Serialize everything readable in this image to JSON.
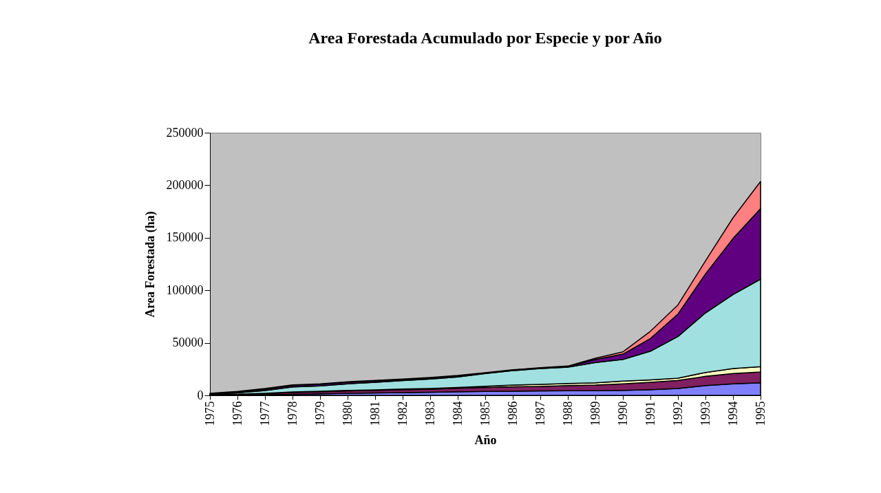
{
  "chart_data": {
    "type": "area",
    "title": "Area Forestada Acumulado por Especie y por Año",
    "xlabel": "Año",
    "ylabel": "Area Forestada (ha)",
    "stacked": true,
    "grid": false,
    "legend": false,
    "categories": [
      "1975",
      "1976",
      "1977",
      "1978",
      "1979",
      "1980",
      "1981",
      "1982",
      "1983",
      "1984",
      "1985",
      "1986",
      "1987",
      "1988",
      "1989",
      "1990",
      "1991",
      "1992",
      "1993",
      "1994",
      "1995"
    ],
    "ylim": [
      0,
      250000
    ],
    "yticks": [
      0,
      50000,
      100000,
      150000,
      200000,
      250000
    ],
    "series": [
      {
        "color": "#8080ff",
        "values": [
          0,
          300,
          600,
          1000,
          1500,
          2000,
          2300,
          2600,
          3000,
          3500,
          3800,
          3900,
          4200,
          4400,
          4400,
          4800,
          5400,
          6500,
          9400,
          10900,
          12000
        ]
      },
      {
        "color": "#802060",
        "values": [
          500,
          600,
          1000,
          1800,
          2000,
          2200,
          2500,
          2800,
          2900,
          3300,
          3800,
          4200,
          4300,
          5000,
          5400,
          6100,
          7000,
          7700,
          8700,
          9800,
          10200
        ]
      },
      {
        "color": "#ffffc0",
        "values": [
          200,
          300,
          400,
          500,
          500,
          500,
          500,
          600,
          600,
          700,
          1100,
          1700,
          2000,
          1900,
          2200,
          2600,
          2400,
          2200,
          3700,
          4800,
          5100
        ]
      },
      {
        "color": "#a0e0e0",
        "values": [
          500,
          1300,
          2500,
          4700,
          5000,
          6300,
          7200,
          8000,
          9000,
          10000,
          12000,
          13700,
          15000,
          15500,
          19200,
          20700,
          27200,
          39600,
          56700,
          70500,
          83300
        ]
      },
      {
        "color": "#600080",
        "values": [
          300,
          700,
          1000,
          1500,
          1500,
          1500,
          1200,
          1000,
          1000,
          1000,
          600,
          500,
          500,
          700,
          3000,
          5000,
          12100,
          21400,
          37100,
          53300,
          67100
        ]
      },
      {
        "color": "#ff8080",
        "values": [
          500,
          600,
          1000,
          500,
          500,
          500,
          500,
          500,
          500,
          500,
          300,
          300,
          300,
          400,
          1100,
          2200,
          6900,
          8700,
          12400,
          19700,
          25800
        ]
      }
    ]
  }
}
